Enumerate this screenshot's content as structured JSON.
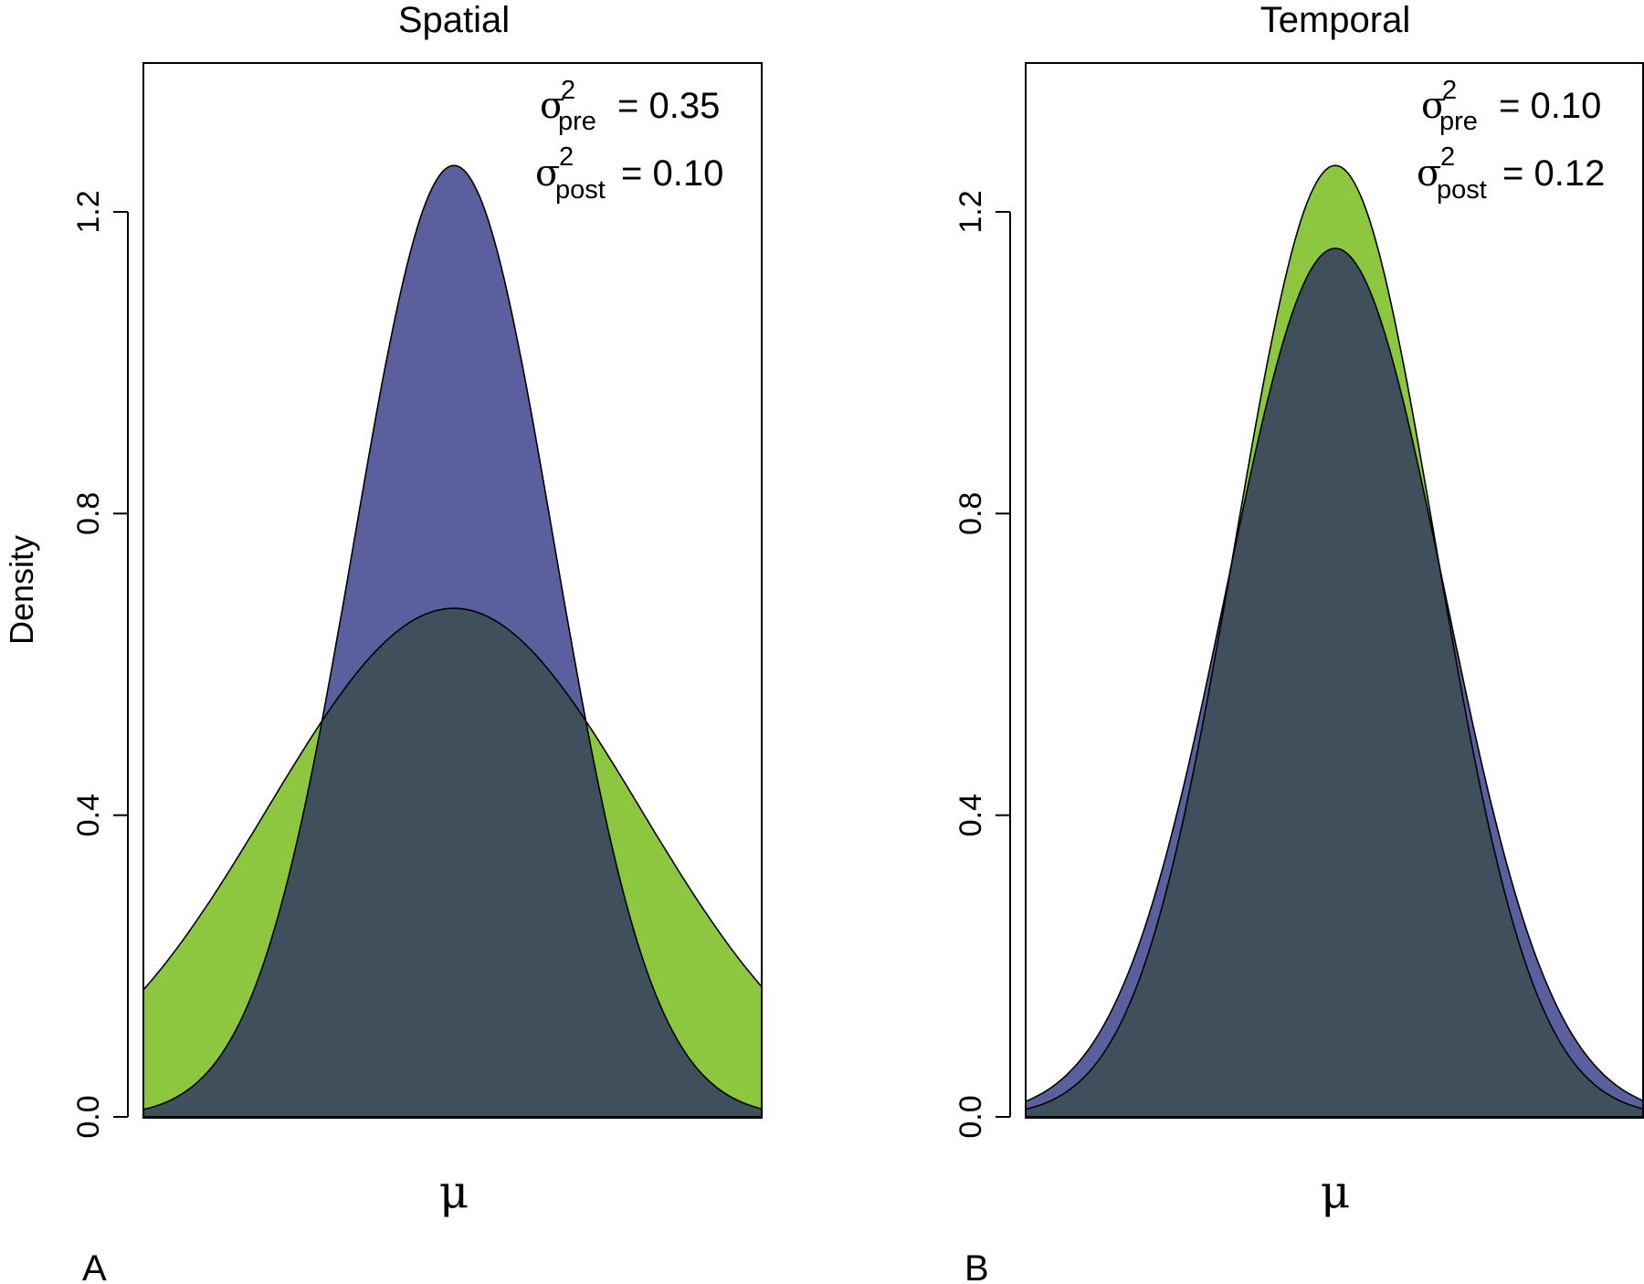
{
  "figure": {
    "ylabel": "Density",
    "colors": {
      "green": "#8dc63f",
      "blue": "#5b5f9e",
      "overlap": "#3f505c",
      "axis": "#000000"
    }
  },
  "chart_data": [
    {
      "type": "area",
      "panel_letter": "A",
      "title": "Spatial",
      "xlabel": "μ",
      "ylabel": "Density",
      "ylim": [
        0,
        1.4
      ],
      "xlim": [
        -1.58,
        1.58
      ],
      "yticks": [
        "0.0",
        "0.4",
        "0.8",
        "1.2"
      ],
      "annotations": [
        {
          "sym": "σ",
          "sup": "2",
          "sub": "pre",
          "text": "= 0.35"
        },
        {
          "sym": "σ",
          "sup": "2",
          "sub": "post",
          "text": "= 0.10"
        }
      ],
      "series": [
        {
          "mean": 0,
          "variance": 0.35,
          "color": "#8dc63f"
        },
        {
          "mean": 0,
          "variance": 0.1,
          "color": "#5b5f9e"
        }
      ]
    },
    {
      "type": "area",
      "panel_letter": "B",
      "title": "Temporal",
      "xlabel": "μ",
      "ylabel": "",
      "ylim": [
        0,
        1.4
      ],
      "xlim": [
        -1.58,
        1.58
      ],
      "yticks": [
        "0.0",
        "0.4",
        "0.8",
        "1.2"
      ],
      "annotations": [
        {
          "sym": "σ",
          "sup": "2",
          "sub": "pre",
          "text": "= 0.10"
        },
        {
          "sym": "σ",
          "sup": "2",
          "sub": "post",
          "text": "= 0.12"
        }
      ],
      "series": [
        {
          "mean": 0,
          "variance": 0.1,
          "color": "#8dc63f"
        },
        {
          "mean": 0,
          "variance": 0.12,
          "color": "#5b5f9e"
        }
      ]
    }
  ]
}
